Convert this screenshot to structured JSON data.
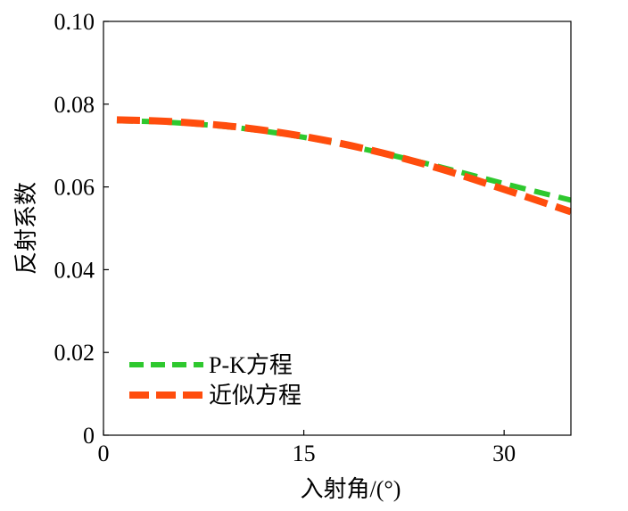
{
  "chart_data": {
    "type": "line",
    "xlabel": "入射角/(°)",
    "ylabel": "反射系数",
    "xlim": [
      0,
      35
    ],
    "ylim": [
      0,
      0.1
    ],
    "x_ticks": [
      0,
      15,
      30
    ],
    "x_tick_labels": [
      "0",
      "15",
      "30"
    ],
    "y_ticks": [
      0,
      0.02,
      0.04,
      0.06,
      0.08,
      0.1
    ],
    "y_tick_labels": [
      "0",
      "0.02",
      "0.04",
      "0.06",
      "0.08",
      "0.10"
    ],
    "grid": false,
    "legend_position": "bottom-left",
    "series": [
      {
        "name": "P-K方程",
        "color": "#2ec82e",
        "x": [
          1,
          5,
          10,
          15,
          20,
          25,
          30,
          35
        ],
        "y": [
          0.076,
          0.0756,
          0.0743,
          0.072,
          0.0688,
          0.065,
          0.0608,
          0.0568
        ]
      },
      {
        "name": "近似方程",
        "color": "#ff4d0d",
        "x": [
          1,
          5,
          10,
          15,
          20,
          25,
          30,
          35
        ],
        "y": [
          0.0762,
          0.0758,
          0.0745,
          0.0722,
          0.0689,
          0.0646,
          0.0594,
          0.054
        ]
      }
    ]
  }
}
